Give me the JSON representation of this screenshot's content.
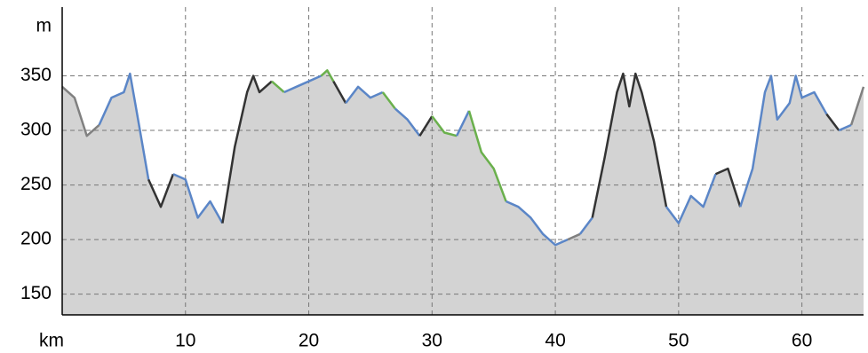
{
  "chart_data": {
    "type": "elevation-profile",
    "x_label": "km",
    "y_label": "m",
    "xlim": [
      0,
      65
    ],
    "ylim": [
      131,
      413
    ],
    "xticks": [
      10,
      20,
      30,
      40,
      50,
      60
    ],
    "yticks": [
      150,
      200,
      250,
      300,
      350
    ],
    "grid": true,
    "fill_color": "#d3d3d3",
    "x": [
      0,
      1,
      2,
      3,
      4,
      5,
      5.5,
      6,
      7,
      8,
      9,
      10,
      11,
      12,
      13,
      14,
      15,
      15.5,
      16,
      17,
      18,
      19,
      20,
      21,
      21.5,
      22,
      23,
      24,
      25,
      26,
      27,
      28,
      29,
      30,
      31,
      32,
      33,
      34,
      35,
      36,
      37,
      38,
      39,
      40,
      41,
      42,
      43,
      44,
      45,
      45.5,
      46,
      46.5,
      47,
      48,
      49,
      50,
      51,
      52,
      53,
      54,
      55,
      56,
      57,
      57.5,
      58,
      59,
      59.5,
      60,
      61,
      62,
      63,
      64,
      65
    ],
    "values": [
      340,
      330,
      295,
      305,
      330,
      335,
      352,
      320,
      255,
      230,
      260,
      255,
      220,
      235,
      215,
      285,
      335,
      350,
      335,
      345,
      335,
      340,
      345,
      350,
      355,
      345,
      325,
      340,
      330,
      335,
      320,
      310,
      295,
      313,
      298,
      295,
      318,
      280,
      265,
      235,
      230,
      220,
      205,
      195,
      200,
      205,
      220,
      275,
      335,
      352,
      322,
      352,
      335,
      290,
      230,
      215,
      240,
      230,
      260,
      265,
      230,
      265,
      335,
      350,
      310,
      325,
      350,
      330,
      335,
      315,
      300,
      305,
      340
    ],
    "line_segments": [
      {
        "from": 0,
        "to": 3,
        "color": "#808080"
      },
      {
        "from": 3,
        "to": 7,
        "color": "#5b86c7"
      },
      {
        "from": 7,
        "to": 9,
        "color": "#333333"
      },
      {
        "from": 9,
        "to": 13,
        "color": "#5b86c7"
      },
      {
        "from": 13,
        "to": 17,
        "color": "#333333"
      },
      {
        "from": 17,
        "to": 18,
        "color": "#6ab04c"
      },
      {
        "from": 18,
        "to": 21,
        "color": "#5b86c7"
      },
      {
        "from": 21,
        "to": 22,
        "color": "#6ab04c"
      },
      {
        "from": 22,
        "to": 23,
        "color": "#333333"
      },
      {
        "from": 23,
        "to": 26,
        "color": "#5b86c7"
      },
      {
        "from": 26,
        "to": 27,
        "color": "#6ab04c"
      },
      {
        "from": 27,
        "to": 29,
        "color": "#5b86c7"
      },
      {
        "from": 29,
        "to": 30,
        "color": "#333333"
      },
      {
        "from": 30,
        "to": 32,
        "color": "#6ab04c"
      },
      {
        "from": 32,
        "to": 33,
        "color": "#5b86c7"
      },
      {
        "from": 33,
        "to": 36,
        "color": "#6ab04c"
      },
      {
        "from": 36,
        "to": 41,
        "color": "#5b86c7"
      },
      {
        "from": 41,
        "to": 42,
        "color": "#808080"
      },
      {
        "from": 42,
        "to": 43,
        "color": "#5b86c7"
      },
      {
        "from": 43,
        "to": 49,
        "color": "#333333"
      },
      {
        "from": 49,
        "to": 53,
        "color": "#5b86c7"
      },
      {
        "from": 53,
        "to": 55,
        "color": "#333333"
      },
      {
        "from": 55,
        "to": 62,
        "color": "#5b86c7"
      },
      {
        "from": 62,
        "to": 63,
        "color": "#333333"
      },
      {
        "from": 63,
        "to": 64,
        "color": "#5b86c7"
      },
      {
        "from": 64,
        "to": 65,
        "color": "#808080"
      }
    ]
  }
}
